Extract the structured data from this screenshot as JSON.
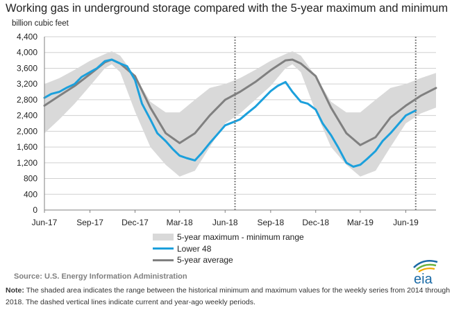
{
  "header": {
    "title": "Working gas in underground storage compared with the 5-year maximum and minimum",
    "unit_label": "billion cubic feet"
  },
  "legend": {
    "range": "5-year maximum - minimum range",
    "lower48": "Lower 48",
    "average": "5-year average"
  },
  "footer": {
    "source": "Source:  U.S. Energy Information Administration",
    "note_label": "Note:",
    "note_text": " The shaded area indicates the range between the historical minimum and maximum values for the weekly series from 2014 through 2018. The dashed vertical lines indicate current and year-ago weekly periods.",
    "logo_text": "eia"
  },
  "colors": {
    "range": "#d9d9d9",
    "lower48": "#1ca0dc",
    "average": "#808080",
    "dashed": "#808080",
    "logo": "#1a6aa6"
  },
  "chart_data": {
    "type": "line",
    "title": "Working gas in underground storage compared with the 5-year maximum and minimum",
    "ylabel": "billion cubic feet",
    "ylim": [
      0,
      4400
    ],
    "yticks": [
      0,
      400,
      800,
      1200,
      1600,
      2000,
      2400,
      2800,
      3200,
      3600,
      4000,
      4400
    ],
    "xlim": [
      "2017-06-01",
      "2019-08-01"
    ],
    "xticks": [
      {
        "date": "2017-06-01",
        "label": "Jun-17"
      },
      {
        "date": "2017-09-01",
        "label": "Sep-17"
      },
      {
        "date": "2017-12-01",
        "label": "Dec-17"
      },
      {
        "date": "2018-03-01",
        "label": "Mar-18"
      },
      {
        "date": "2018-06-01",
        "label": "Jun-18"
      },
      {
        "date": "2018-09-01",
        "label": "Sep-18"
      },
      {
        "date": "2018-12-01",
        "label": "Dec-18"
      },
      {
        "date": "2019-03-01",
        "label": "Mar-19"
      },
      {
        "date": "2019-06-01",
        "label": "Jun-19"
      }
    ],
    "dashed_lines": [
      "2018-06-21",
      "2019-06-21"
    ],
    "range": {
      "name": "5-year maximum - minimum range",
      "x": [
        "2017-06-01",
        "2017-07-01",
        "2017-08-01",
        "2017-09-01",
        "2017-10-01",
        "2017-10-15",
        "2017-11-01",
        "2017-12-01",
        "2018-01-01",
        "2018-02-01",
        "2018-03-01",
        "2018-04-01",
        "2018-05-01",
        "2018-06-01",
        "2018-07-01",
        "2018-08-01",
        "2018-09-01",
        "2018-10-01",
        "2018-10-15",
        "2018-11-01",
        "2018-12-01",
        "2019-01-01",
        "2019-02-01",
        "2019-03-01",
        "2019-04-01",
        "2019-05-01",
        "2019-06-01",
        "2019-07-01",
        "2019-08-01"
      ],
      "max": [
        3200,
        3350,
        3560,
        3790,
        3960,
        4030,
        3920,
        3400,
        2750,
        2480,
        2480,
        2800,
        3100,
        3200,
        3350,
        3560,
        3790,
        3960,
        4030,
        3920,
        3400,
        2750,
        2480,
        2480,
        2800,
        3100,
        3200,
        3350,
        3480
      ],
      "min": [
        1950,
        2300,
        2700,
        3150,
        3600,
        3700,
        3500,
        2500,
        1600,
        1150,
        850,
        1000,
        1600,
        2200,
        2450,
        2800,
        3150,
        3600,
        3700,
        3500,
        2500,
        1600,
        1150,
        850,
        1000,
        1600,
        2200,
        2450,
        2600
      ]
    },
    "series": [
      {
        "name": "Lower 48",
        "x": [
          "2017-06-01",
          "2017-06-15",
          "2017-07-01",
          "2017-07-15",
          "2017-08-01",
          "2017-08-15",
          "2017-09-01",
          "2017-09-15",
          "2017-10-01",
          "2017-10-15",
          "2017-11-01",
          "2017-11-15",
          "2017-12-01",
          "2017-12-15",
          "2018-01-01",
          "2018-01-15",
          "2018-02-01",
          "2018-02-15",
          "2018-03-01",
          "2018-03-15",
          "2018-04-01",
          "2018-04-15",
          "2018-05-01",
          "2018-05-15",
          "2018-06-01",
          "2018-06-21",
          "2018-07-01",
          "2018-07-15",
          "2018-08-01",
          "2018-08-15",
          "2018-09-01",
          "2018-09-15",
          "2018-10-01",
          "2018-10-15",
          "2018-11-01",
          "2018-11-15",
          "2018-12-01",
          "2018-12-15",
          "2019-01-01",
          "2019-01-15",
          "2019-02-01",
          "2019-02-15",
          "2019-03-01",
          "2019-03-15",
          "2019-04-01",
          "2019-04-15",
          "2019-05-01",
          "2019-05-15",
          "2019-06-01",
          "2019-06-21"
        ],
        "values": [
          2850,
          2950,
          3000,
          3100,
          3200,
          3380,
          3500,
          3600,
          3780,
          3820,
          3720,
          3650,
          3300,
          2700,
          2300,
          1950,
          1750,
          1550,
          1380,
          1320,
          1260,
          1450,
          1700,
          1900,
          2150,
          2250,
          2300,
          2450,
          2620,
          2800,
          3020,
          3150,
          3250,
          3000,
          2750,
          2700,
          2550,
          2200,
          1900,
          1600,
          1200,
          1100,
          1150,
          1300,
          1500,
          1750,
          1950,
          2150,
          2400,
          2530
        ]
      },
      {
        "name": "5-year average",
        "x": [
          "2017-06-01",
          "2017-07-01",
          "2017-08-01",
          "2017-09-01",
          "2017-10-01",
          "2017-10-15",
          "2017-11-01",
          "2017-12-01",
          "2018-01-01",
          "2018-02-01",
          "2018-03-01",
          "2018-04-01",
          "2018-05-01",
          "2018-06-01",
          "2018-07-01",
          "2018-08-01",
          "2018-09-01",
          "2018-10-01",
          "2018-10-15",
          "2018-11-01",
          "2018-12-01",
          "2019-01-01",
          "2019-02-01",
          "2019-03-01",
          "2019-04-01",
          "2019-05-01",
          "2019-06-01",
          "2019-07-01",
          "2019-08-01"
        ],
        "values": [
          2650,
          2900,
          3150,
          3450,
          3750,
          3820,
          3720,
          3400,
          2600,
          1950,
          1700,
          1950,
          2400,
          2800,
          3000,
          3250,
          3550,
          3800,
          3820,
          3720,
          3400,
          2600,
          1950,
          1650,
          1850,
          2350,
          2650,
          2900,
          3100
        ]
      }
    ]
  }
}
